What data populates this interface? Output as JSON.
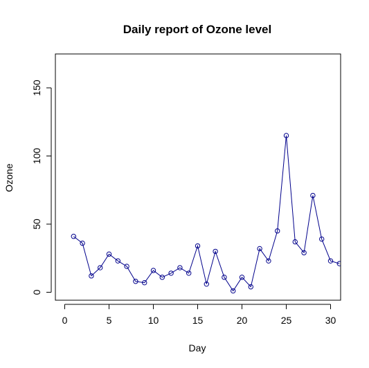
{
  "chart_data": {
    "type": "line",
    "title": "Daily report of Ozone level",
    "xlabel": "Day",
    "ylabel": "Ozone",
    "xlim": [
      0,
      31
    ],
    "ylim": [
      0,
      168
    ],
    "xticks": [
      0,
      5,
      10,
      15,
      20,
      25,
      30
    ],
    "yticks": [
      0,
      50,
      100,
      150
    ],
    "grid": false,
    "legend": "none",
    "series": [
      {
        "color": "#00008b",
        "marker": "open-circle",
        "x": [
          1,
          2,
          3,
          4,
          5,
          6,
          7,
          8,
          9,
          10,
          11,
          12,
          13,
          14,
          15,
          16,
          17,
          18,
          19,
          20,
          21,
          22,
          23,
          24,
          25,
          26,
          27,
          28,
          29,
          30,
          31
        ],
        "values": [
          41,
          36,
          12,
          18,
          28,
          23,
          19,
          8,
          7,
          16,
          11,
          14,
          18,
          14,
          34,
          6,
          30,
          11,
          1,
          11,
          4,
          32,
          23,
          45,
          115,
          37,
          29,
          71,
          39,
          23,
          21
        ]
      }
    ]
  }
}
